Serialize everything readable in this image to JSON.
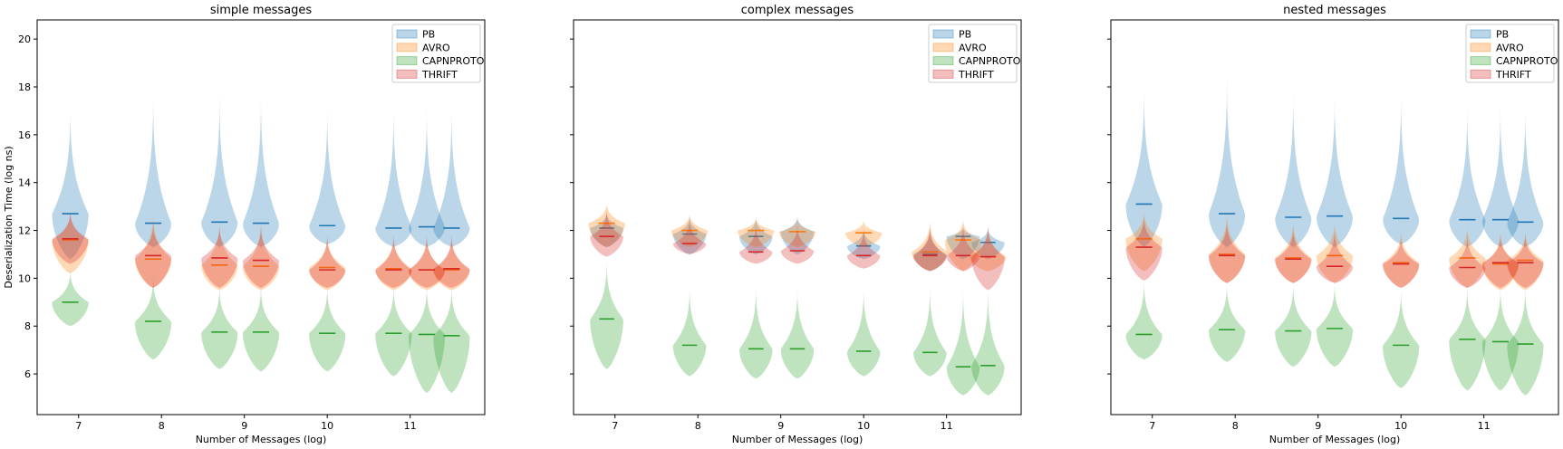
{
  "colors": {
    "PB": "#1f77b4",
    "AVRO": "#ff7f0e",
    "CAPNPROTO": "#2ca02c",
    "THRIFT": "#d62728"
  },
  "chart_data": [
    {
      "type": "violin",
      "title": "simple messages",
      "xlabel": "Number of Messages (log)",
      "ylabel": "Deserialization Time (log ns)",
      "xlim": [
        6.5,
        11.9
      ],
      "ylim": [
        4.3,
        20.8
      ],
      "xticks": [
        7,
        8,
        9,
        10,
        11
      ],
      "yticks": [
        6,
        8,
        10,
        12,
        14,
        16,
        18,
        20
      ],
      "show_yticklabels": true,
      "legend_position": "top-right",
      "positions": [
        6.9,
        7.9,
        8.7,
        9.2,
        10.0,
        10.8,
        11.2,
        11.5
      ],
      "series": [
        {
          "name": "PB",
          "medians": [
            12.7,
            12.3,
            12.35,
            12.3,
            12.2,
            12.1,
            12.15,
            12.1
          ],
          "min": [
            10.8,
            11.3,
            11.3,
            11.3,
            11.4,
            11.3,
            11.3,
            11.3
          ],
          "max": [
            17.6,
            18.2,
            18.2,
            18.2,
            17.6,
            17.6,
            17.6,
            17.6
          ],
          "width": 0.22
        },
        {
          "name": "AVRO",
          "medians": [
            11.6,
            10.8,
            10.55,
            10.5,
            10.45,
            10.4,
            10.35,
            10.35
          ],
          "min": [
            10.2,
            9.6,
            9.5,
            9.5,
            9.5,
            9.5,
            9.5,
            9.5
          ],
          "max": [
            13.0,
            13.0,
            12.6,
            12.6,
            12.0,
            12.0,
            12.0,
            12.0
          ],
          "width": 0.22
        },
        {
          "name": "CAPNPROTO",
          "medians": [
            9.0,
            8.2,
            7.75,
            7.75,
            7.7,
            7.7,
            7.65,
            7.6
          ],
          "min": [
            8.0,
            6.6,
            6.2,
            6.1,
            6.1,
            5.9,
            5.2,
            5.2
          ],
          "max": [
            10.5,
            10.3,
            9.9,
            9.9,
            9.9,
            9.9,
            9.9,
            9.9
          ],
          "width": 0.22
        },
        {
          "name": "THRIFT",
          "medians": [
            11.65,
            10.95,
            10.85,
            10.75,
            10.35,
            10.35,
            10.35,
            10.4
          ],
          "min": [
            10.6,
            9.6,
            9.6,
            9.6,
            9.6,
            9.6,
            9.6,
            9.6
          ],
          "max": [
            13.0,
            12.5,
            12.4,
            12.4,
            12.0,
            12.0,
            12.0,
            12.0
          ],
          "width": 0.22
        }
      ]
    },
    {
      "type": "violin",
      "title": "complex messages",
      "xlabel": "Number of Messages (log)",
      "ylabel": "",
      "xlim": [
        6.5,
        11.9
      ],
      "ylim": [
        4.3,
        20.8
      ],
      "xticks": [
        7,
        8,
        9,
        10,
        11
      ],
      "yticks": [
        6,
        8,
        10,
        12,
        14,
        16,
        18,
        20
      ],
      "show_yticklabels": false,
      "legend_position": "top-right",
      "positions": [
        6.9,
        7.9,
        8.7,
        9.2,
        10.0,
        10.8,
        11.2,
        11.5
      ],
      "series": [
        {
          "name": "PB",
          "medians": [
            12.1,
            11.85,
            11.75,
            11.95,
            11.35,
            11.0,
            11.75,
            11.5
          ],
          "min": [
            11.3,
            11.0,
            11.0,
            11.0,
            10.8,
            10.3,
            10.8,
            10.8
          ],
          "max": [
            12.9,
            12.7,
            12.7,
            12.7,
            12.2,
            12.2,
            12.2,
            12.2
          ],
          "width": 0.2
        },
        {
          "name": "AVRO",
          "medians": [
            12.3,
            12.0,
            12.0,
            11.95,
            11.9,
            11.1,
            11.6,
            10.9
          ],
          "min": [
            11.3,
            11.3,
            11.3,
            11.3,
            11.3,
            10.3,
            10.3,
            10.3
          ],
          "max": [
            13.3,
            12.8,
            12.6,
            12.6,
            12.5,
            12.6,
            12.6,
            12.4
          ],
          "width": 0.22
        },
        {
          "name": "CAPNPROTO",
          "medians": [
            8.3,
            7.2,
            7.05,
            7.05,
            6.95,
            6.9,
            6.3,
            6.35
          ],
          "min": [
            6.2,
            5.9,
            5.8,
            5.8,
            5.9,
            5.9,
            5.1,
            5.1
          ],
          "max": [
            11.0,
            9.9,
            9.9,
            9.9,
            9.9,
            9.9,
            9.9,
            9.9
          ],
          "width": 0.2
        },
        {
          "name": "THRIFT",
          "medians": [
            11.75,
            11.45,
            11.1,
            11.15,
            10.95,
            10.95,
            10.95,
            10.9
          ],
          "min": [
            10.9,
            11.0,
            10.6,
            10.6,
            10.4,
            10.3,
            10.3,
            9.5
          ],
          "max": [
            13.0,
            12.6,
            12.4,
            12.4,
            12.2,
            12.4,
            12.4,
            12.4
          ],
          "width": 0.2
        }
      ]
    },
    {
      "type": "violin",
      "title": "nested messages",
      "xlabel": "Number of Messages (log)",
      "ylabel": "",
      "xlim": [
        6.5,
        11.9
      ],
      "ylim": [
        4.3,
        20.8
      ],
      "xticks": [
        7,
        8,
        9,
        10,
        11
      ],
      "yticks": [
        6,
        8,
        10,
        12,
        14,
        16,
        18,
        20
      ],
      "show_yticklabels": false,
      "legend_position": "top-right",
      "positions": [
        6.9,
        7.9,
        8.7,
        9.2,
        10.0,
        10.8,
        11.2,
        11.5
      ],
      "series": [
        {
          "name": "PB",
          "medians": [
            13.1,
            12.7,
            12.55,
            12.6,
            12.5,
            12.45,
            12.45,
            12.35
          ],
          "min": [
            11.3,
            11.3,
            11.3,
            11.3,
            11.4,
            11.3,
            11.3,
            11.3
          ],
          "max": [
            18.4,
            19.0,
            18.2,
            18.2,
            18.2,
            17.6,
            17.6,
            17.6
          ],
          "width": 0.22
        },
        {
          "name": "AVRO",
          "medians": [
            11.65,
            11.0,
            10.85,
            10.95,
            10.65,
            10.85,
            10.6,
            10.75
          ],
          "min": [
            10.3,
            9.8,
            9.8,
            9.8,
            9.6,
            9.6,
            9.5,
            9.5
          ],
          "max": [
            13.0,
            13.0,
            12.6,
            12.6,
            12.2,
            12.4,
            12.2,
            12.2
          ],
          "width": 0.22
        },
        {
          "name": "CAPNPROTO",
          "medians": [
            7.65,
            7.85,
            7.8,
            7.9,
            7.2,
            7.45,
            7.35,
            7.25
          ],
          "min": [
            6.6,
            6.5,
            6.3,
            6.3,
            5.4,
            5.3,
            5.3,
            5.1
          ],
          "max": [
            10.2,
            10.0,
            10.0,
            10.0,
            9.8,
            9.9,
            9.9,
            9.9
          ],
          "width": 0.22
        },
        {
          "name": "THRIFT",
          "medians": [
            11.3,
            10.95,
            10.8,
            10.5,
            10.6,
            10.45,
            10.65,
            10.65
          ],
          "min": [
            9.9,
            9.8,
            9.8,
            9.8,
            9.6,
            9.6,
            9.6,
            9.6
          ],
          "max": [
            12.8,
            12.6,
            12.3,
            12.3,
            11.9,
            12.0,
            12.0,
            12.0
          ],
          "width": 0.22
        }
      ]
    }
  ]
}
